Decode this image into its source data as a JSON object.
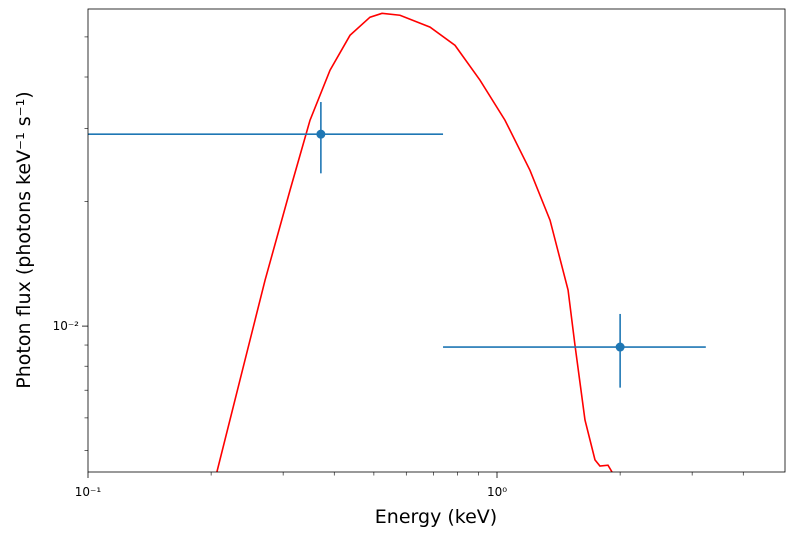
{
  "chart_data": {
    "type": "errorbar-model",
    "xlabel": "Energy (keV)",
    "ylabel": "Photon flux (photons keV⁻¹ s⁻¹)",
    "xscale": "log",
    "yscale": "log",
    "xlim": [
      0.1,
      5.06
    ],
    "ylim": [
      0.00444,
      0.0584
    ],
    "xticks": [
      {
        "value": 0.1,
        "label": "10⁻¹"
      },
      {
        "value": 1,
        "label": "10⁰"
      }
    ],
    "xticks_minor": [
      0.2,
      0.3,
      0.4,
      0.5,
      0.6,
      0.7,
      0.8,
      0.9,
      2,
      3,
      4
    ],
    "yticks": [
      {
        "value": 0.01,
        "label": "10⁻²"
      }
    ],
    "yticks_minor": [
      0.005,
      0.006,
      0.007,
      0.008,
      0.009,
      0.02,
      0.03,
      0.04,
      0.05
    ],
    "data": {
      "color": "#1f77b4",
      "x": [
        0.371,
        2.0
      ],
      "y": [
        0.0291,
        0.0089
      ],
      "xerr_low": [
        0.271,
        1.262
      ],
      "xerr_high": [
        0.367,
        1.24
      ],
      "yerr": [
        0.0057,
        0.0018
      ]
    },
    "model": {
      "color": "#ff0000",
      "x": [
        0.2066,
        0.2353,
        0.271,
        0.3119,
        0.349,
        0.3906,
        0.4371,
        0.4892,
        0.5234,
        0.5791,
        0.6858,
        0.7896,
        0.9087,
        1.046,
        1.204,
        1.348,
        1.492,
        1.551,
        1.641,
        1.736,
        1.785,
        1.868,
        1.911
      ],
      "y": [
        0.00444,
        0.00741,
        0.01292,
        0.02131,
        0.03145,
        0.04155,
        0.05045,
        0.0558,
        0.057,
        0.0564,
        0.0528,
        0.0477,
        0.0393,
        0.03145,
        0.0238,
        0.01803,
        0.01222,
        0.009,
        0.00593,
        0.00475,
        0.00459,
        0.00461,
        0.00444
      ]
    }
  }
}
